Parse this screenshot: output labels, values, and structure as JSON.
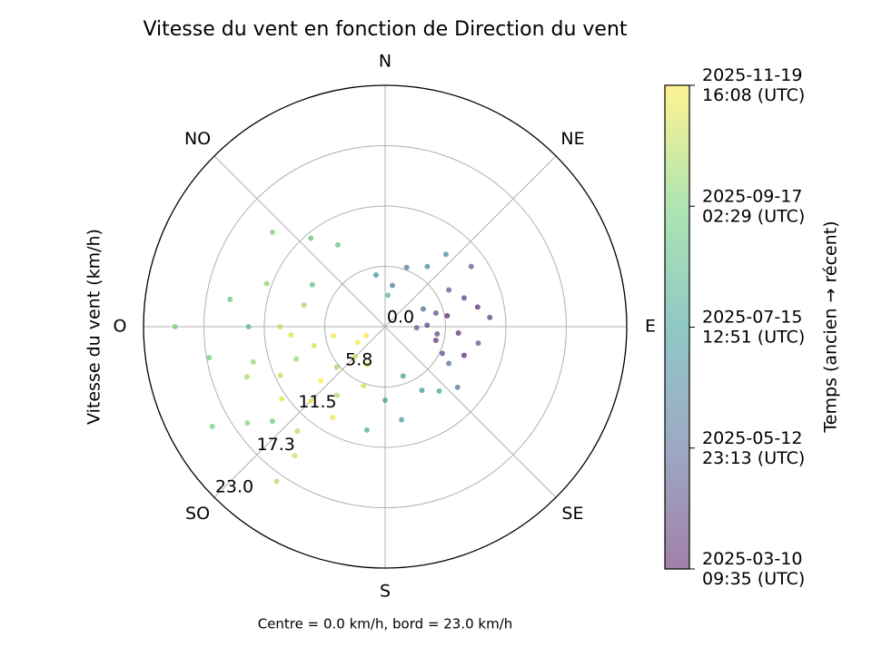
{
  "chart_data": {
    "type": "polar-scatter",
    "title": "Vitesse du vent en fonction de Direction du vent",
    "r_label": "Vitesse du vent (km/h)",
    "colorbar_label": "Temps (ancien → récent)",
    "caption": "Centre = 0.0 km/h, bord = 23.0 km/h",
    "directions": [
      {
        "value": 0,
        "label": "N"
      },
      {
        "value": 45,
        "label": "NE"
      },
      {
        "value": 90,
        "label": "E"
      },
      {
        "value": 135,
        "label": "SE"
      },
      {
        "value": 180,
        "label": "S"
      },
      {
        "value": 225,
        "label": "SO"
      },
      {
        "value": 270,
        "label": "O"
      },
      {
        "value": 315,
        "label": "NO"
      }
    ],
    "rlim": [
      0,
      23
    ],
    "rticks": [
      {
        "value": 0,
        "label": "0.0"
      },
      {
        "value": 5.75,
        "label": "5.8"
      },
      11.5,
      {
        "value": 17.25,
        "label": "17.3"
      },
      {
        "value": 23,
        "label": "23.0"
      }
    ],
    "clim": [
      "2025-03-10T09:35Z",
      "2025-11-19T16:08Z"
    ],
    "cticks": [
      {
        "value": "2025-03-10T09:35Z",
        "label": "2025-03-10\n09:35 (UTC)"
      },
      {
        "value": "2025-05-12T23:13Z",
        "label": "2025-05-12\n23:13 (UTC)"
      },
      {
        "value": "2025-07-15T12:51Z",
        "label": "2025-07-15\n12:51 (UTC)"
      },
      {
        "value": "2025-09-17T02:29Z",
        "label": "2025-09-17\n02:29 (UTC)"
      },
      {
        "value": "2025-11-19T16:08Z",
        "label": "2025-11-19\n16:08 (UTC)"
      }
    ],
    "grid": true,
    "colormap": "viridis",
    "x": [
      80,
      95,
      105,
      70,
      88,
      115,
      75,
      100,
      60,
      92,
      110,
      85,
      65,
      120,
      78,
      98,
      130,
      55,
      20,
      10,
      35,
      350,
      150,
      170,
      160,
      140,
      190,
      5,
      300,
      320,
      280,
      260,
      240,
      310,
      290,
      230,
      270,
      250,
      230,
      215,
      245,
      225,
      255,
      235,
      210,
      260,
      240,
      220,
      200,
      265,
      250,
      235,
      225,
      245,
      270,
      285,
      215,
      205,
      255,
      230,
      180,
      330,
      40,
      270,
      215
    ],
    "values": [
      6,
      7,
      5,
      8,
      4,
      6,
      5,
      9,
      7,
      3,
      8,
      10,
      4,
      7,
      9,
      5,
      9,
      10,
      6,
      4,
      7,
      5,
      7,
      9,
      5,
      8,
      10,
      3,
      8,
      11,
      15,
      17,
      19,
      14,
      12,
      14,
      20,
      9,
      6,
      8,
      11,
      4,
      7,
      12,
      10,
      5,
      3,
      13,
      6,
      9,
      14,
      16,
      10,
      2,
      10,
      8,
      15,
      4,
      13,
      8,
      7,
      9,
      9,
      13,
      18
    ],
    "time": [
      "2025-03-12",
      "2025-03-20",
      "2025-03-28",
      "2025-04-02",
      "2025-04-10",
      "2025-04-15",
      "2025-04-22",
      "2025-04-28",
      "2025-05-03",
      "2025-05-08",
      "2025-03-18",
      "2025-04-05",
      "2025-05-15",
      "2025-05-20",
      "2025-03-25",
      "2025-04-18",
      "2025-05-25",
      "2025-05-01",
      "2025-06-05",
      "2025-06-12",
      "2025-06-20",
      "2025-06-28",
      "2025-07-05",
      "2025-07-12",
      "2025-07-20",
      "2025-07-28",
      "2025-08-05",
      "2025-08-12",
      "2025-08-20",
      "2025-08-28",
      "2025-09-03",
      "2025-09-10",
      "2025-09-15",
      "2025-09-22",
      "2025-09-28",
      "2025-09-08",
      "2025-09-18",
      "2025-10-02",
      "2025-10-08",
      "2025-10-14",
      "2025-10-20",
      "2025-10-26",
      "2025-11-01",
      "2025-11-05",
      "2025-11-09",
      "2025-11-13",
      "2025-11-17",
      "2025-10-18",
      "2025-10-30",
      "2025-11-03",
      "2025-10-11",
      "2025-09-25",
      "2025-11-11",
      "2025-11-15",
      "2025-10-22",
      "2025-10-05",
      "2025-10-28",
      "2025-11-07",
      "2025-09-30",
      "2025-11-19",
      "2025-07-15",
      "2025-09-01",
      "2025-06-25",
      "2025-08-15",
      "2025-10-16"
    ]
  }
}
